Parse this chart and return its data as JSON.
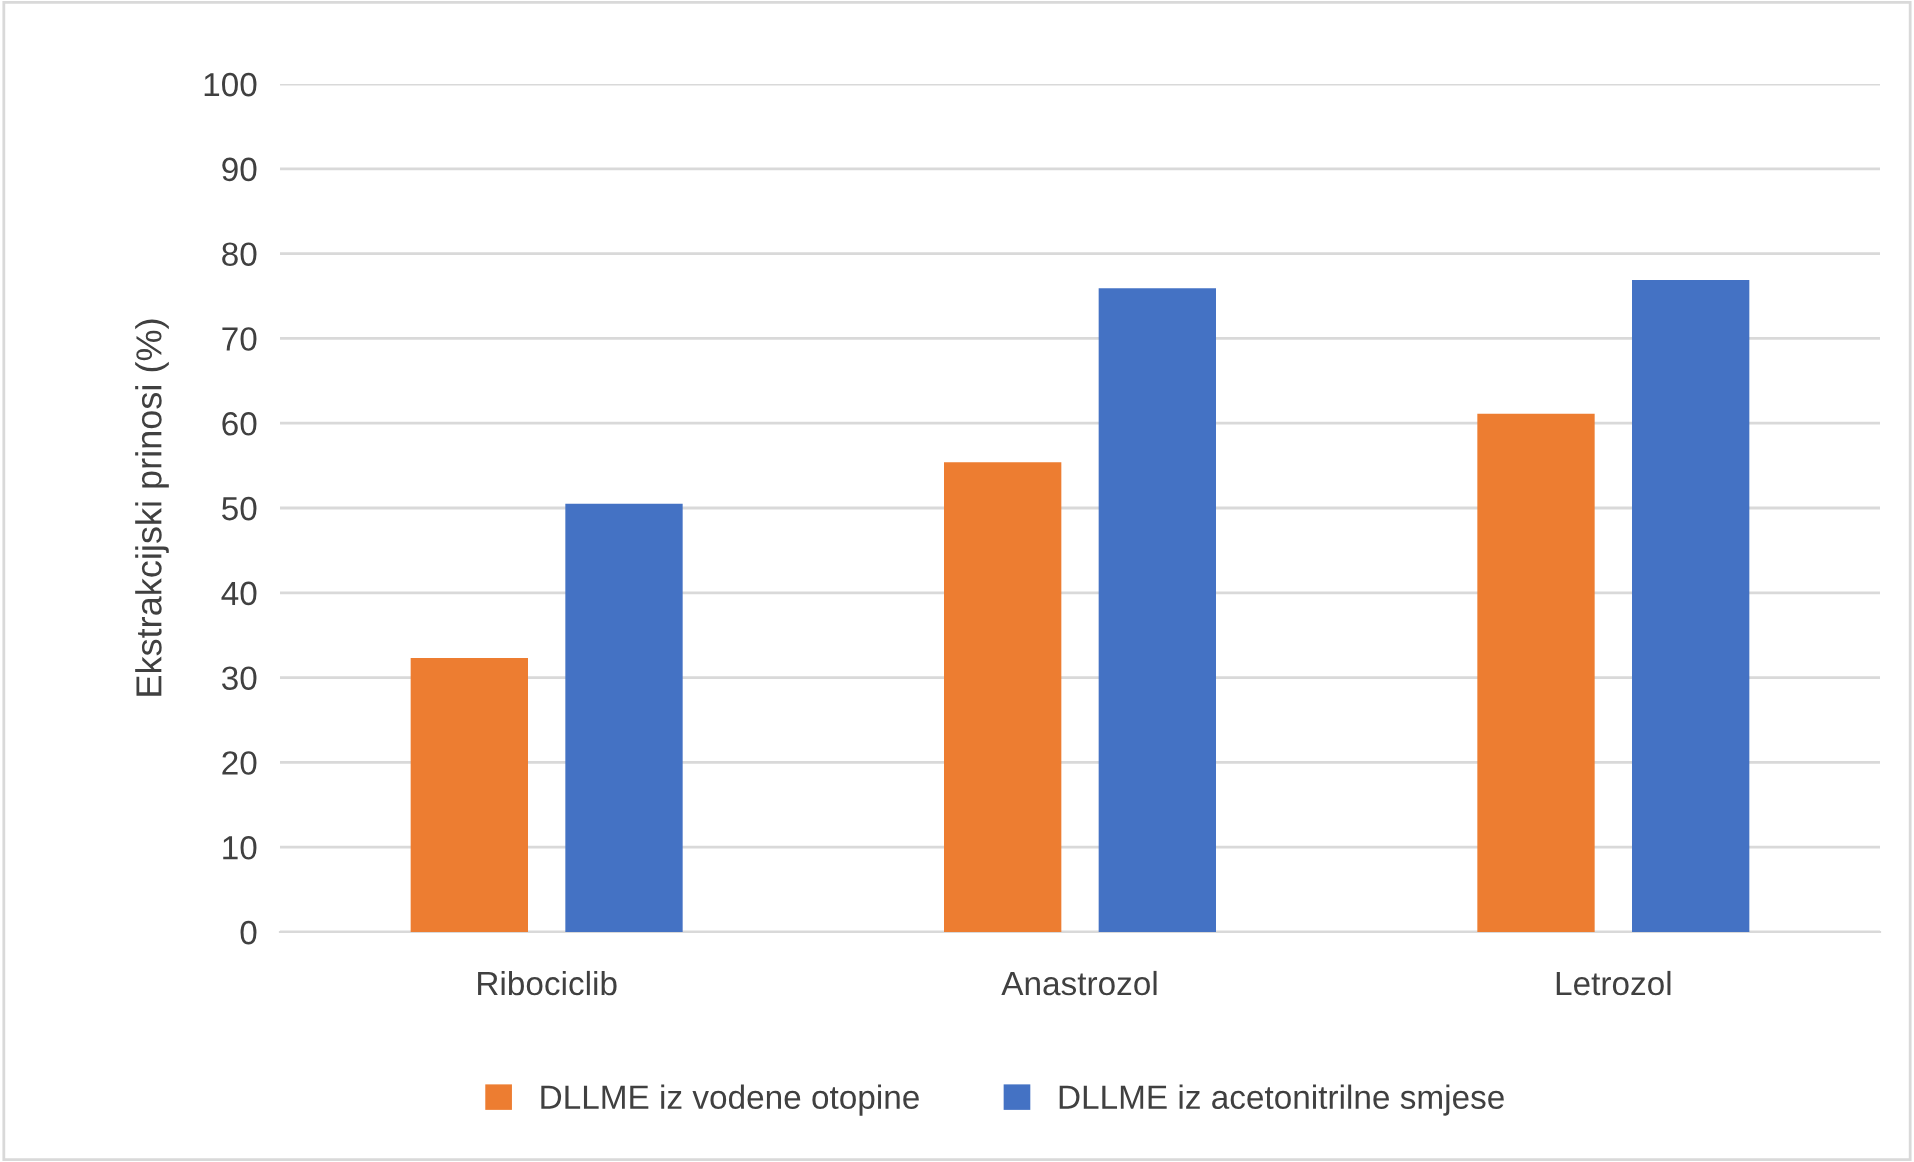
{
  "chart_data": {
    "type": "bar",
    "ylabel": "Ekstrakcijski prinosi (%)",
    "categories": [
      "Ribociclib",
      "Anastrozol",
      "Letrozol"
    ],
    "series": [
      {
        "name": "DLLME iz vodene otopine",
        "color": "#ed7d31",
        "values": [
          32.3,
          55.4,
          61.1
        ]
      },
      {
        "name": "DLLME iz acetonitrilne smjese",
        "color": "#4472c4",
        "values": [
          50.5,
          75.9,
          76.9
        ]
      }
    ],
    "ylim": [
      0,
      100
    ],
    "yticks": [
      0,
      10,
      20,
      30,
      40,
      50,
      60,
      70,
      80,
      90,
      100
    ],
    "grid": "y",
    "legend": "bottom"
  }
}
